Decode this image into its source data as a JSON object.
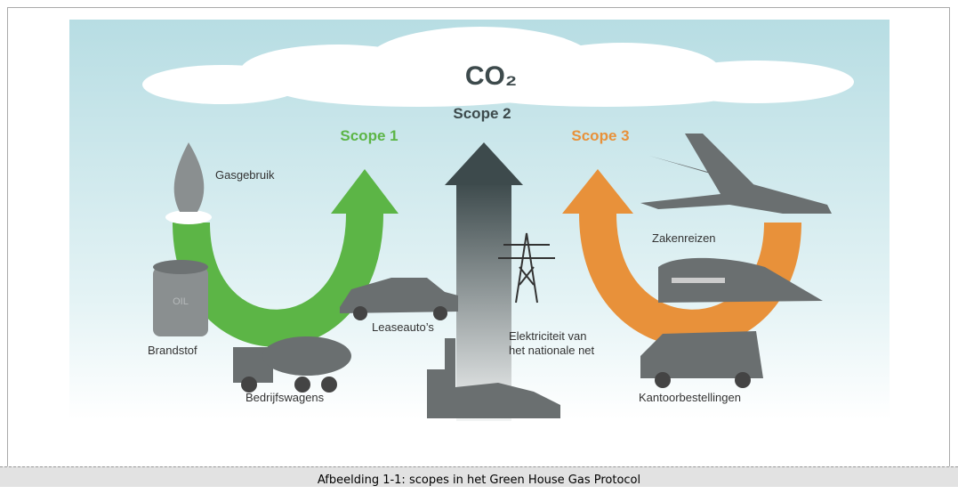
{
  "diagram": {
    "co2": "CO₂",
    "scopes": [
      {
        "label": "Scope 1"
      },
      {
        "label": "Scope 2"
      },
      {
        "label": "Scope 3"
      }
    ],
    "items": {
      "gasgebruik": "Gasgebruik",
      "brandstof": "Brandstof",
      "bedrijfswagens": "Bedrijfswagens",
      "leaseautos": "Leaseauto’s",
      "elektriciteit": [
        "Elektriciteit van",
        "het nationale net"
      ],
      "zakenreizen": "Zakenreizen",
      "kantoorbestellingen": "Kantoorbestellingen"
    },
    "oil_label": "OIL"
  },
  "caption": "Afbeelding 1-1: scopes in het Green House Gas Protocol"
}
